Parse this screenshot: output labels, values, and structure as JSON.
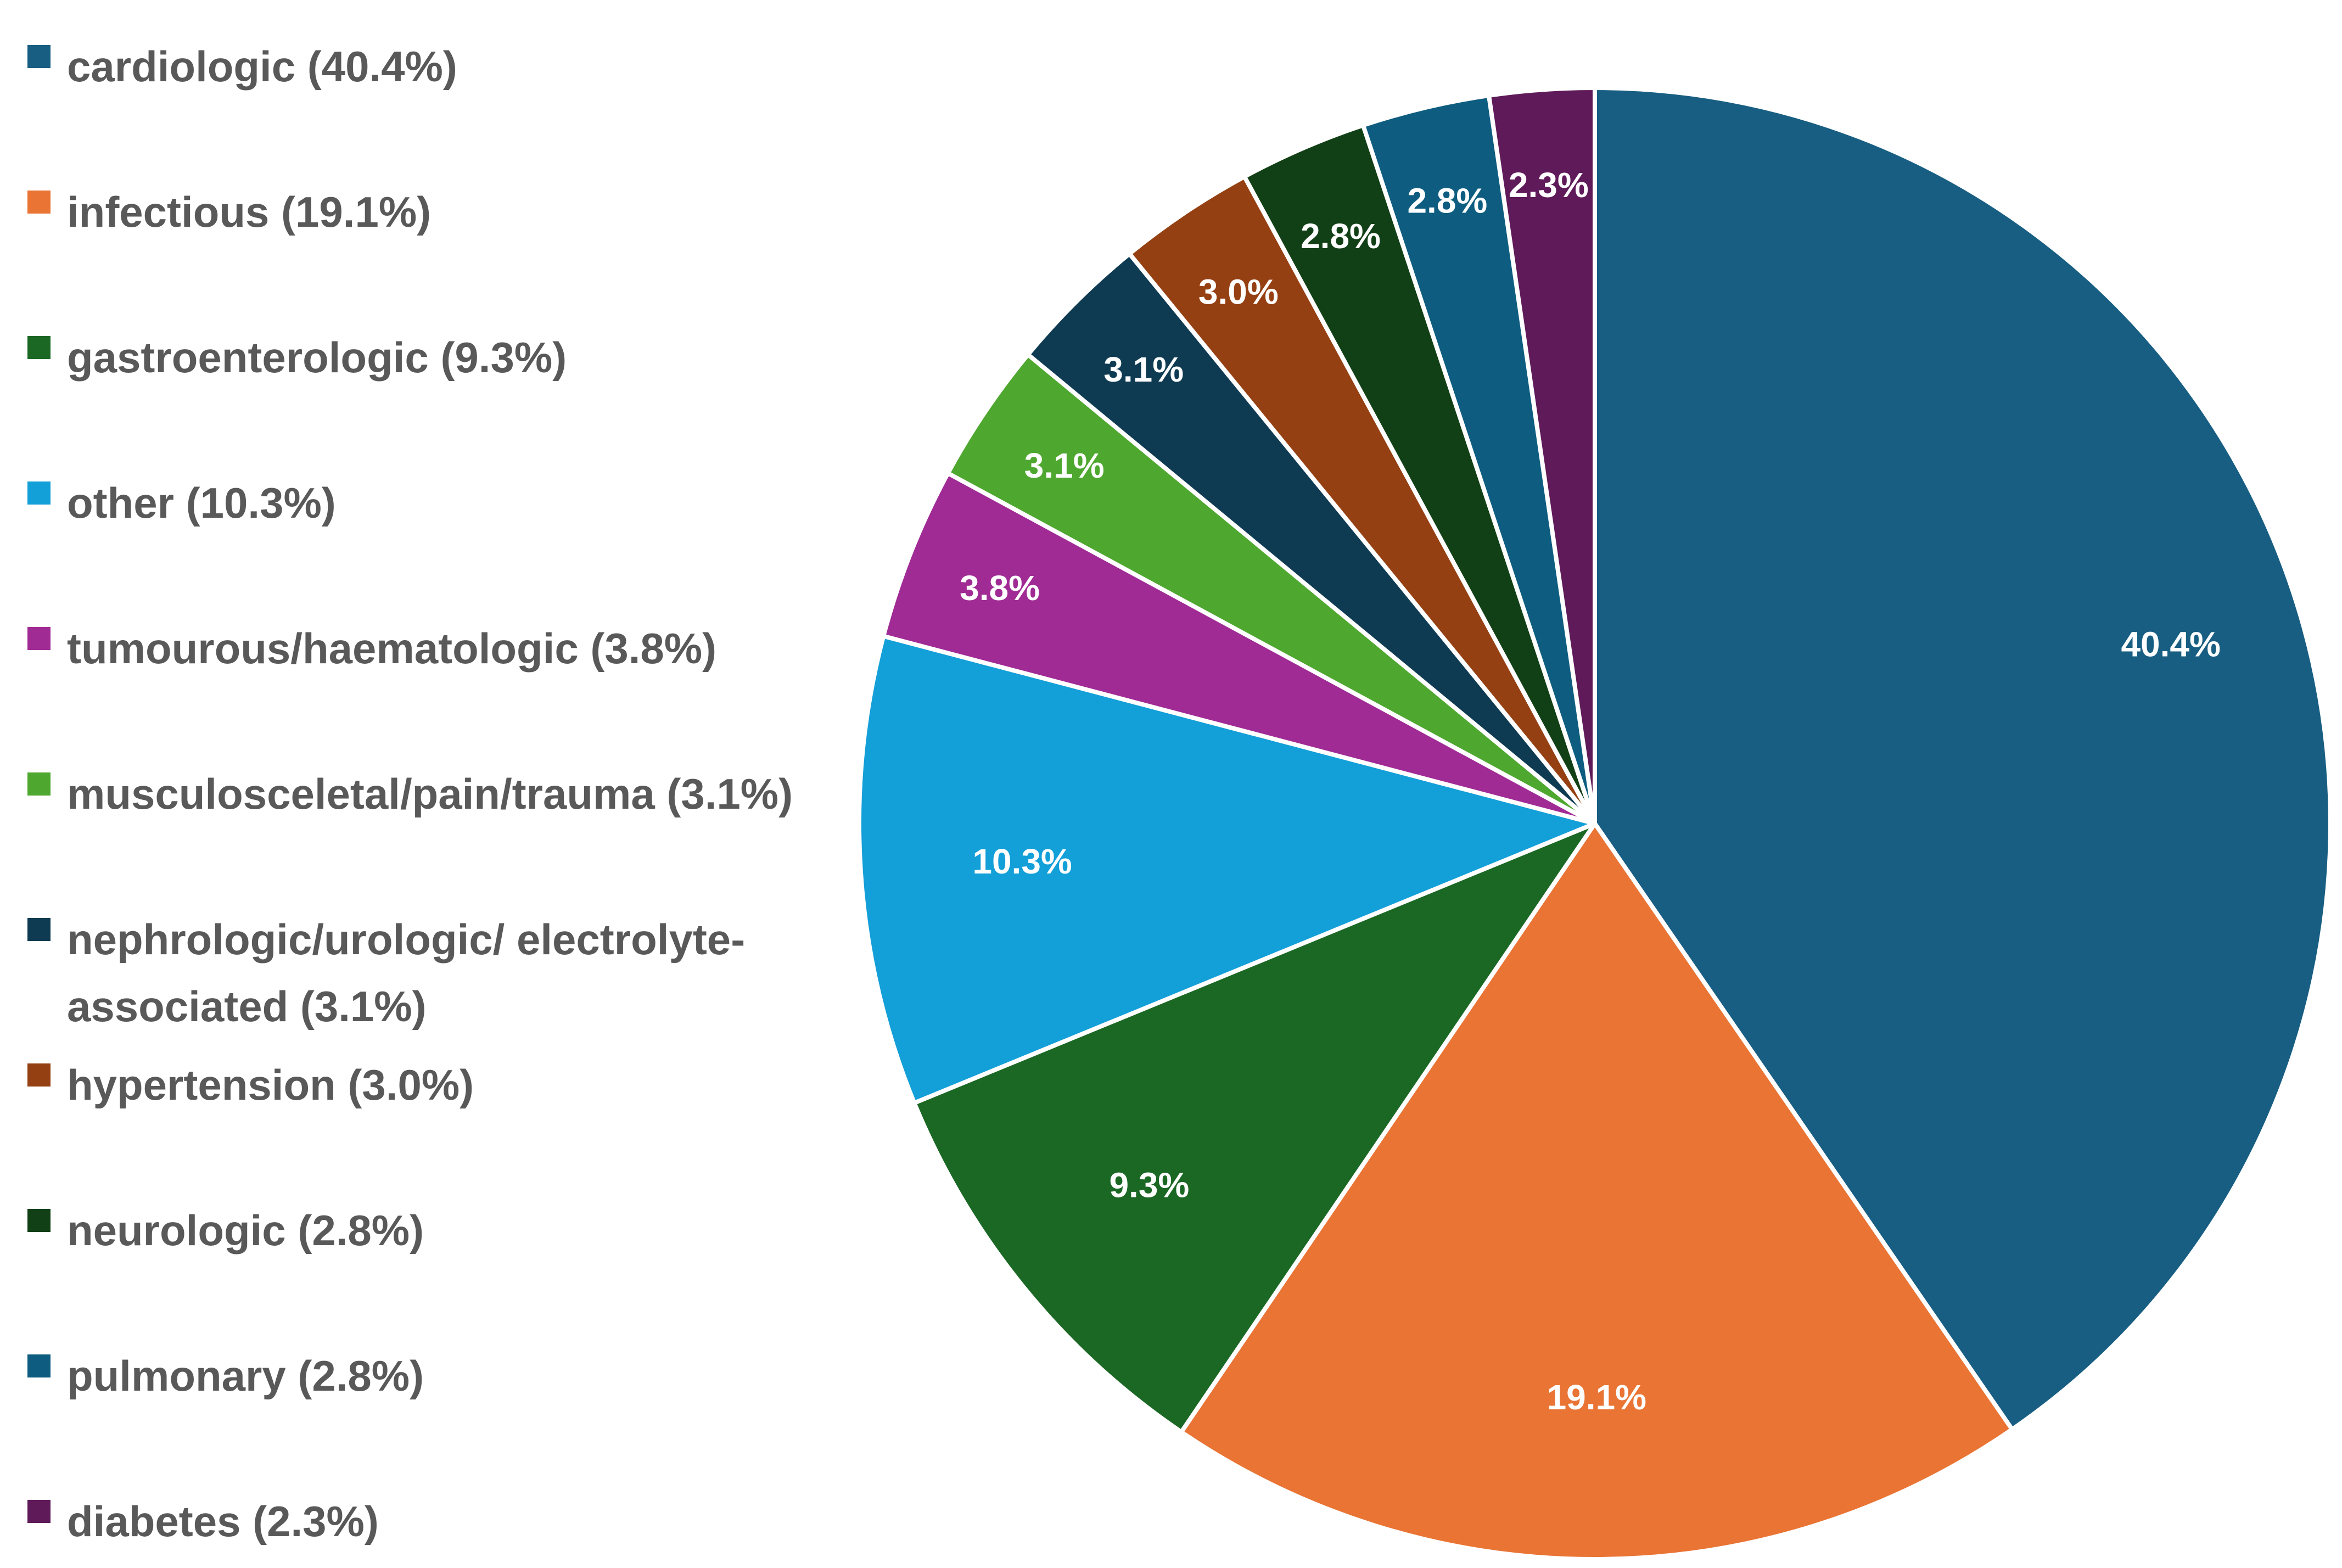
{
  "chart_data": {
    "type": "pie",
    "title": "",
    "legend_position": "left",
    "categories": [
      "cardiologic",
      "infectious",
      "gastroenterologic",
      "other",
      "tumourous/haematologic",
      "musculosceletal/pain/trauma",
      "nephrologic/urologic/ electrolyte-associated",
      "hypertension",
      "neurologic",
      "pulmonary",
      "diabetes"
    ],
    "values": [
      40.4,
      19.1,
      9.3,
      10.3,
      3.8,
      3.1,
      3.1,
      3.0,
      2.8,
      2.8,
      2.3
    ],
    "unit": "%",
    "legend_labels": [
      "cardiologic (40.4%)",
      "infectious (19.1%)",
      "gastroenterologic (9.3%)",
      "other (10.3%)",
      "tumourous/haematologic (3.8%)",
      "musculosceletal/pain/trauma (3.1%)",
      "nephrologic/urologic/ electrolyte-associated (3.1%)",
      "hypertension (3.0%)",
      "neurologic (2.8%)",
      "pulmonary (2.8%)",
      "diabetes (2.3%)"
    ],
    "data_labels": [
      "40.4%",
      "19.1%",
      "9.3%",
      "10.3%",
      "3.8%",
      "3.1%",
      "3.1%",
      "3.0%",
      "2.8%",
      "2.8%",
      "2.3%"
    ],
    "colors": [
      "#185E82",
      "#E97434",
      "#1B6825",
      "#139FD8",
      "#A02B95",
      "#4EA72F",
      "#0E3B52",
      "#954012",
      "#124016",
      "#0E5D80",
      "#5F1A59"
    ],
    "start_angle_deg": 0,
    "direction": "clockwise"
  }
}
